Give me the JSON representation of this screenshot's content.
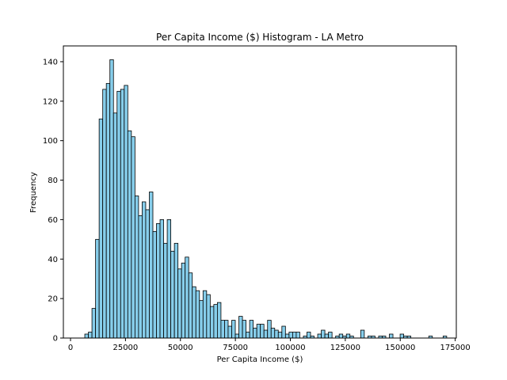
{
  "chart_data": {
    "type": "bar",
    "title": "Per Capita Income ($) Histogram - LA Metro",
    "xlabel": "Per Capita Income ($)",
    "ylabel": "Frequency",
    "xlim": [
      -3250,
      175500
    ],
    "ylim": [
      0,
      148
    ],
    "xticks": [
      0,
      25000,
      50000,
      75000,
      100000,
      125000,
      150000,
      175000
    ],
    "yticks": [
      0,
      20,
      40,
      60,
      80,
      100,
      120,
      140
    ],
    "xtick_labels": [
      "0",
      "25000",
      "50000",
      "75000",
      "100000",
      "125000",
      "150000",
      "175000"
    ],
    "ytick_labels": [
      "0",
      "20",
      "40",
      "60",
      "80",
      "100",
      "120",
      "140"
    ],
    "bin_start": 6500,
    "bin_width": 1630,
    "bar_color": "#87ceeb",
    "edge_color": "#000000",
    "grid": false,
    "values": [
      2,
      3,
      15,
      50,
      111,
      126,
      129,
      141,
      114,
      125,
      126,
      128,
      105,
      102,
      72,
      62,
      69,
      65,
      74,
      54,
      58,
      60,
      48,
      60,
      44,
      48,
      35,
      38,
      41,
      33,
      26,
      24,
      19,
      24,
      22,
      16,
      17,
      18,
      9,
      9,
      6,
      9,
      2,
      11,
      9,
      3,
      9,
      5,
      7,
      7,
      4,
      9,
      5,
      4,
      3,
      6,
      2,
      3,
      3,
      3,
      0,
      1,
      3,
      1,
      0,
      2,
      4,
      2,
      3,
      0,
      1,
      2,
      1,
      2,
      1,
      0,
      0,
      4,
      0,
      1,
      1,
      0,
      1,
      1,
      0,
      2,
      0,
      0,
      2,
      1,
      1,
      0,
      0,
      0,
      0,
      0,
      1,
      0,
      0,
      0,
      1
    ]
  }
}
